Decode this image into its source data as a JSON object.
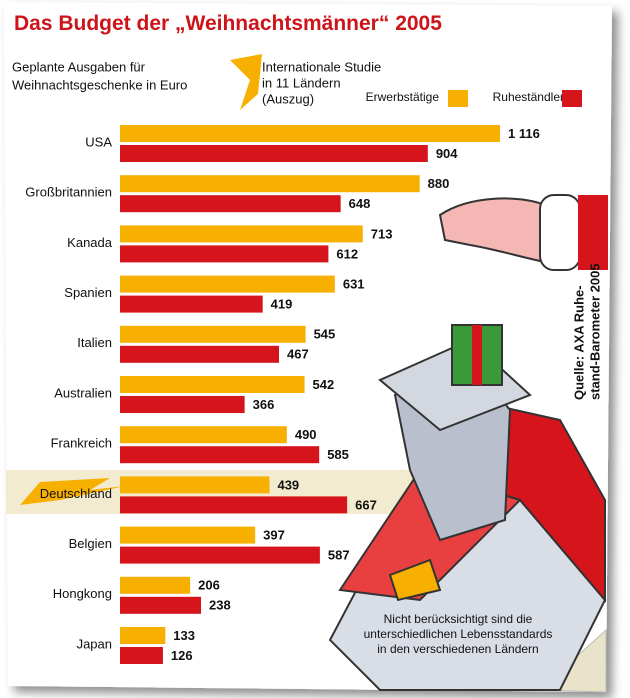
{
  "chart_data": {
    "type": "bar",
    "title": "Das Budget der „Weihnachtsmänner“ 2005",
    "subtitle": [
      "Geplante Ausgaben für",
      "Weihnachtsgeschenke in Euro"
    ],
    "note": [
      "Internationale Studie",
      "in 11 Ländern",
      "(Auszug)"
    ],
    "source": [
      "Quelle: AXA Ruhe-",
      "stand-Barometer 2005"
    ],
    "footnote": [
      "Nicht berücksichtigt sind die",
      "unterschiedlichen Lebensstandards",
      "in den verschiedenen Ländern"
    ],
    "categories": [
      "USA",
      "Großbritannien",
      "Kanada",
      "Spanien",
      "Italien",
      "Australien",
      "Frankreich",
      "Deutschland",
      "Belgien",
      "Hongkong",
      "Japan"
    ],
    "highlight": "Deutschland",
    "series": [
      {
        "name": "Erwerbstätige",
        "color": "#f7b000",
        "values": [
          1116,
          880,
          713,
          631,
          545,
          542,
          490,
          439,
          397,
          206,
          133
        ],
        "value_labels": [
          "1 116",
          "880",
          "713",
          "631",
          "545",
          "542",
          "490",
          "439",
          "397",
          "206",
          "133"
        ]
      },
      {
        "name": "Ruheständler",
        "color": "#d5141b",
        "values": [
          904,
          648,
          612,
          419,
          467,
          366,
          585,
          667,
          587,
          238,
          126
        ]
      }
    ]
  }
}
